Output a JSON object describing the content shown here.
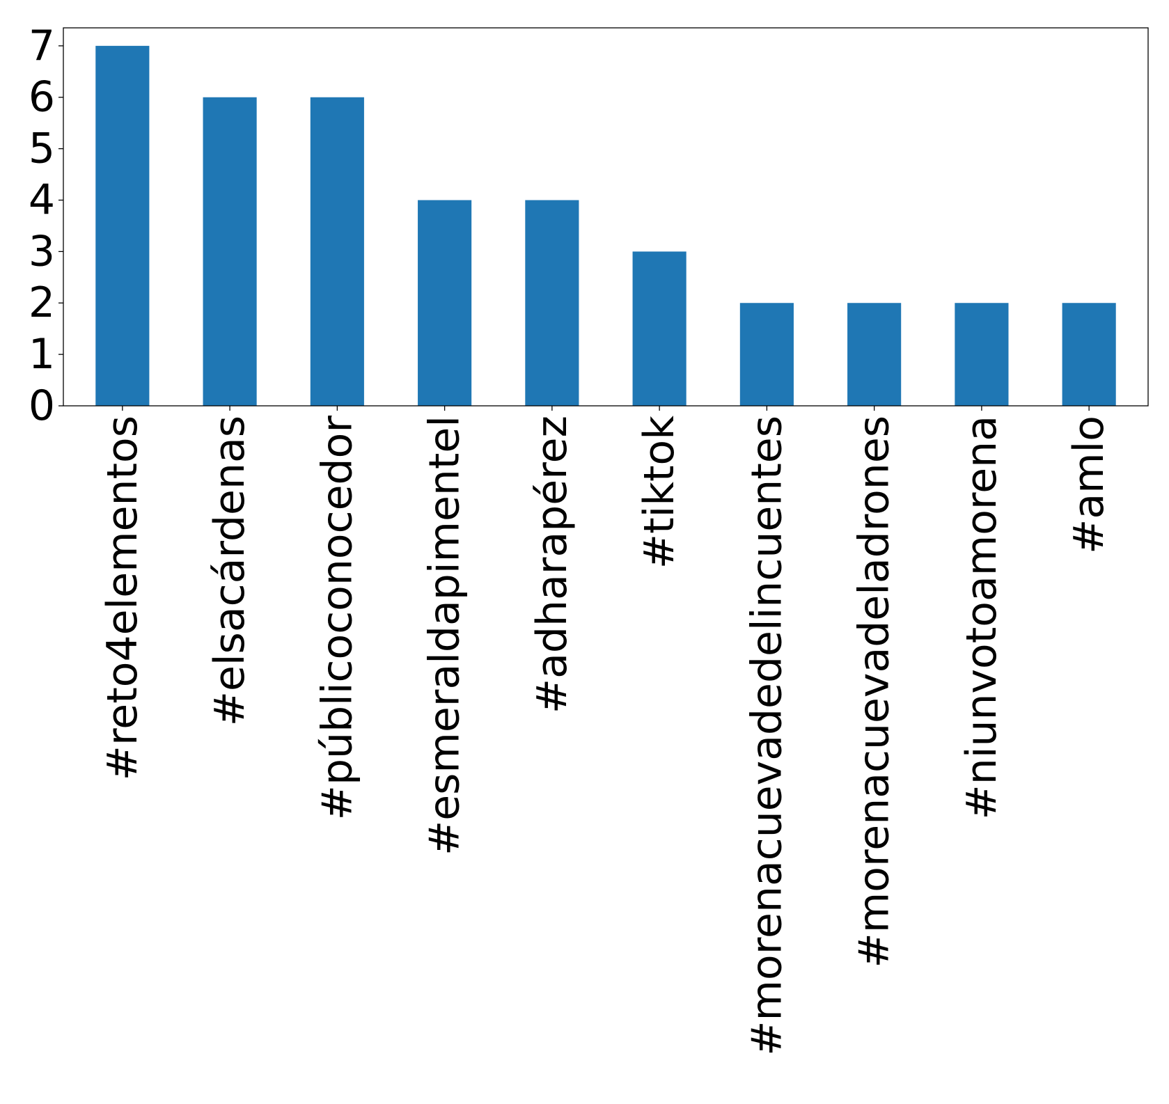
{
  "chart_data": {
    "type": "bar",
    "title": "",
    "xlabel": "",
    "ylabel": "",
    "categories": [
      "#reto4elementos",
      "#elsacárdenas",
      "#públicoconocedor",
      "#esmeraldapimentel",
      "#adharapérez",
      "#tiktok",
      "#morenacuevadedelincuentes",
      "#morenacuevadeladrones",
      "#niunvotoamorena",
      "#amlo"
    ],
    "values": [
      7,
      6,
      6,
      4,
      4,
      3,
      2,
      2,
      2,
      2
    ],
    "ylim": [
      0,
      7.35
    ],
    "yticks": [
      0,
      1,
      2,
      3,
      4,
      5,
      6,
      7
    ],
    "bar_color": "#1f77b4",
    "grid": false,
    "legend": "none"
  }
}
